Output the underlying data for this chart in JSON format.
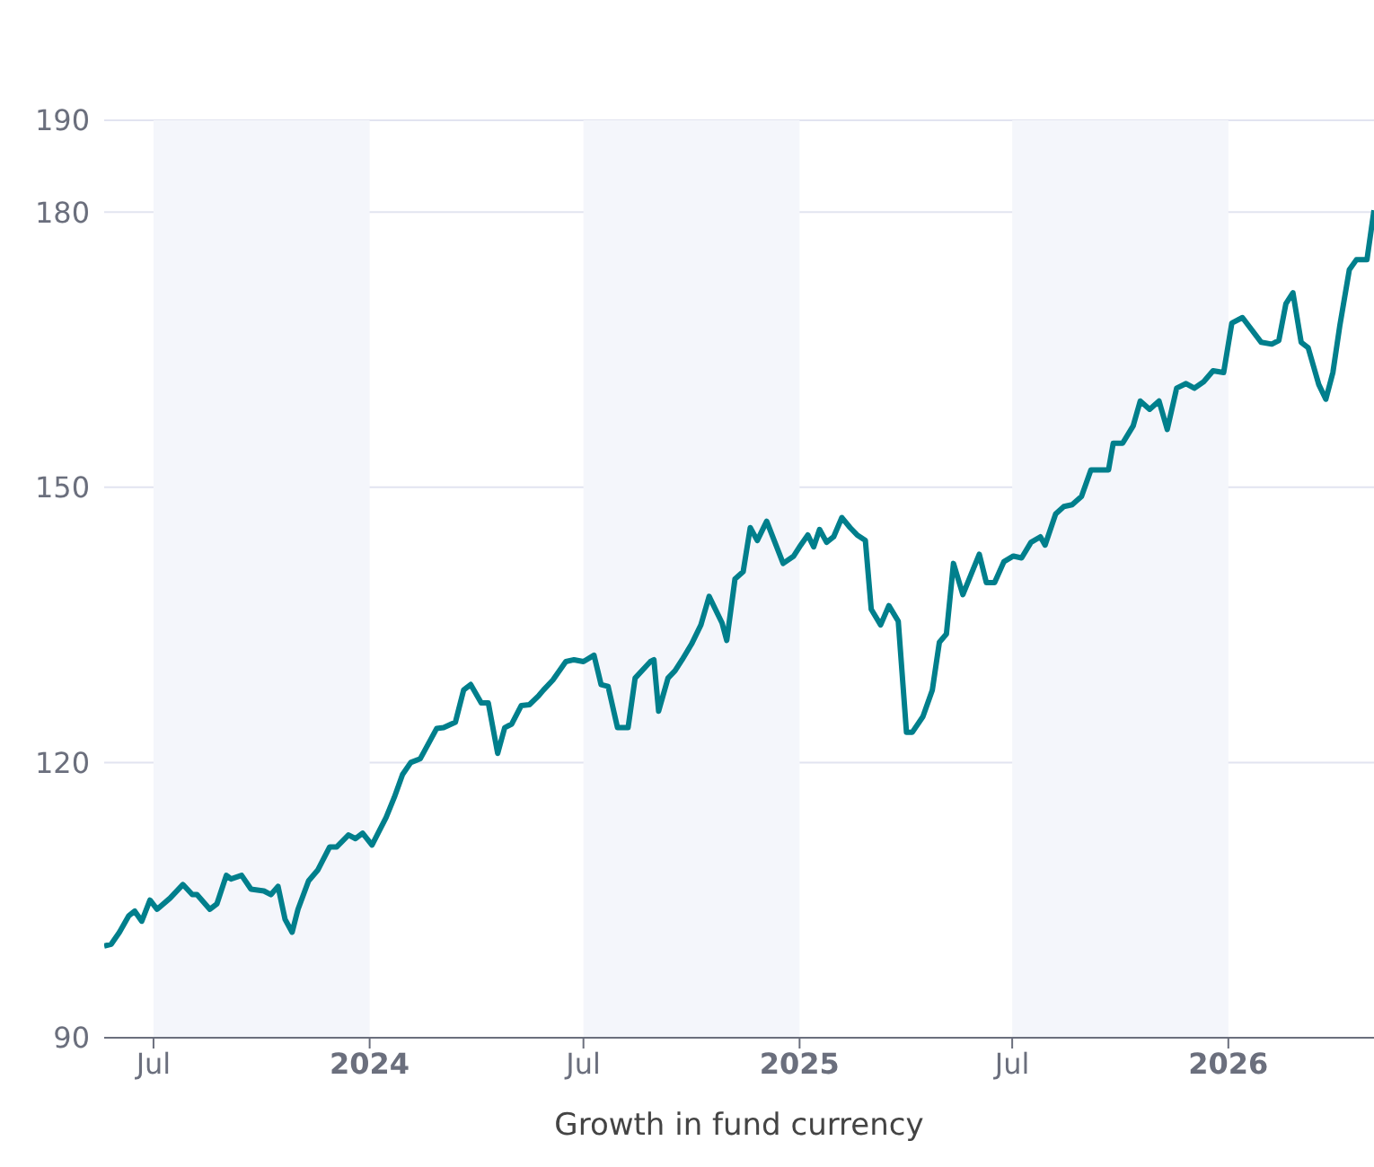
{
  "chart_data": {
    "type": "line",
    "xlabel": "Growth in fund currency",
    "x": [
      "2023-05-20",
      "2023-05-26",
      "2023-06-02",
      "2023-06-10",
      "2023-06-15",
      "2023-06-21",
      "2023-06-28",
      "2023-07-04",
      "2023-07-15",
      "2023-07-26",
      "2023-08-03",
      "2023-08-07",
      "2023-08-18",
      "2023-08-24",
      "2023-09-01",
      "2023-09-05",
      "2023-09-14",
      "2023-09-22",
      "2023-10-03",
      "2023-10-09",
      "2023-10-15",
      "2023-10-21",
      "2023-10-27",
      "2023-11-01",
      "2023-11-10",
      "2023-11-18",
      "2023-11-28",
      "2023-12-04",
      "2023-12-14",
      "2023-12-20",
      "2023-12-26",
      "2024-01-03",
      "2024-01-15",
      "2024-01-22",
      "2024-01-29",
      "2024-02-05",
      "2024-02-13",
      "2024-02-27",
      "2024-03-04",
      "2024-03-14",
      "2024-03-21",
      "2024-03-27",
      "2024-04-05",
      "2024-04-11",
      "2024-04-19",
      "2024-04-25",
      "2024-05-01",
      "2024-05-09",
      "2024-05-16",
      "2024-05-24",
      "2024-05-28",
      "2024-06-05",
      "2024-06-16",
      "2024-06-23",
      "2024-07-01",
      "2024-07-10",
      "2024-07-16",
      "2024-07-22",
      "2024-07-30",
      "2024-08-08",
      "2024-08-14",
      "2024-08-27",
      "2024-08-30",
      "2024-09-03",
      "2024-09-11",
      "2024-09-17",
      "2024-09-23",
      "2024-10-01",
      "2024-10-09",
      "2024-10-16",
      "2024-10-27",
      "2024-10-31",
      "2024-11-07",
      "2024-11-14",
      "2024-11-20",
      "2024-11-26",
      "2024-12-04",
      "2024-12-18",
      "2024-12-27",
      "2025-01-02",
      "2025-01-08",
      "2025-01-13",
      "2025-01-18",
      "2025-01-24",
      "2025-01-30",
      "2025-02-06",
      "2025-02-13",
      "2025-02-19",
      "2025-02-26",
      "2025-03-03",
      "2025-03-11",
      "2025-03-18",
      "2025-03-26",
      "2025-04-02",
      "2025-04-07",
      "2025-04-16",
      "2025-04-24",
      "2025-04-30",
      "2025-05-06",
      "2025-05-12",
      "2025-05-20",
      "2025-06-03",
      "2025-06-09",
      "2025-06-16",
      "2025-06-24",
      "2025-07-02",
      "2025-07-09",
      "2025-07-17",
      "2025-07-25",
      "2025-07-29",
      "2025-08-07",
      "2025-08-14",
      "2025-08-21",
      "2025-08-29",
      "2025-09-06",
      "2025-09-13",
      "2025-09-21",
      "2025-09-25",
      "2025-10-03",
      "2025-10-12",
      "2025-10-18",
      "2025-10-26",
      "2025-11-03",
      "2025-11-10",
      "2025-11-18",
      "2025-11-26",
      "2025-12-03",
      "2025-12-11",
      "2025-12-19",
      "2025-12-28",
      "2026-01-04",
      "2026-01-13",
      "2026-01-29",
      "2026-02-07",
      "2026-02-13",
      "2026-02-19",
      "2026-02-25",
      "2026-03-04",
      "2026-03-10",
      "2026-03-19",
      "2026-03-25",
      "2026-03-31",
      "2026-04-06",
      "2026-04-14",
      "2026-04-20",
      "2026-04-29",
      "2026-05-05"
    ],
    "series": [
      {
        "color": "#007f8c",
        "values": [
          100.0,
          100.2,
          101.5,
          103.3,
          103.8,
          102.7,
          105.0,
          104.0,
          105.2,
          106.7,
          105.6,
          105.6,
          104.0,
          104.6,
          107.7,
          107.3,
          107.7,
          106.2,
          106.0,
          105.6,
          106.5,
          102.9,
          101.5,
          104.0,
          107.1,
          108.3,
          110.8,
          110.8,
          112.1,
          111.7,
          112.3,
          111.0,
          114.0,
          116.2,
          118.7,
          120.0,
          120.4,
          123.7,
          123.8,
          124.4,
          127.9,
          128.5,
          126.5,
          126.5,
          121.0,
          123.8,
          124.2,
          126.2,
          126.3,
          127.3,
          127.9,
          129.0,
          131.0,
          131.2,
          131.0,
          131.7,
          128.5,
          128.3,
          123.8,
          123.8,
          129.2,
          131.0,
          131.2,
          125.6,
          129.2,
          130.0,
          131.2,
          132.9,
          135.0,
          138.1,
          135.2,
          133.3,
          140.0,
          140.8,
          145.6,
          144.2,
          146.3,
          141.7,
          142.5,
          143.7,
          144.8,
          143.5,
          145.4,
          144.0,
          144.6,
          146.7,
          145.6,
          144.8,
          144.2,
          136.7,
          135.0,
          137.1,
          135.4,
          123.3,
          123.3,
          125.0,
          127.9,
          133.1,
          134.0,
          141.7,
          138.3,
          142.7,
          139.6,
          139.6,
          141.9,
          142.5,
          142.3,
          144.0,
          144.6,
          143.7,
          147.1,
          147.9,
          148.1,
          149.0,
          151.9,
          151.9,
          151.9,
          154.8,
          154.8,
          156.7,
          159.4,
          158.5,
          159.4,
          156.3,
          160.8,
          161.3,
          160.8,
          161.5,
          162.7,
          162.5,
          167.9,
          168.5,
          165.8,
          165.6,
          166.0,
          170.0,
          171.2,
          165.8,
          165.2,
          161.2,
          159.6,
          162.5,
          167.7,
          173.7,
          174.8,
          174.8,
          180.2
        ]
      }
    ],
    "xlim": [
      "2023-05-20",
      "2026-05-05"
    ],
    "xticks": [
      {
        "value": "2023-07-01",
        "label": "Jul"
      },
      {
        "value": "2024-01-01",
        "label": "2024"
      },
      {
        "value": "2024-07-01",
        "label": "Jul"
      },
      {
        "value": "2025-01-01",
        "label": "2025"
      },
      {
        "value": "2025-07-01",
        "label": "Jul"
      },
      {
        "value": "2026-01-01",
        "label": "2026"
      }
    ],
    "ylim": [
      90,
      190
    ],
    "yticks": [
      90,
      120,
      150,
      180,
      190
    ],
    "bands": [
      {
        "axis": "x",
        "from": "2023-07-01",
        "to": "2024-01-01",
        "color": "#f4f6fb"
      },
      {
        "axis": "x",
        "from": "2024-07-01",
        "to": "2025-01-01",
        "color": "#f4f6fb"
      },
      {
        "axis": "x",
        "from": "2025-07-01",
        "to": "2026-01-01",
        "color": "#f4f6fb"
      }
    ],
    "grid": "y",
    "marker": "none",
    "line_style": "solid"
  }
}
